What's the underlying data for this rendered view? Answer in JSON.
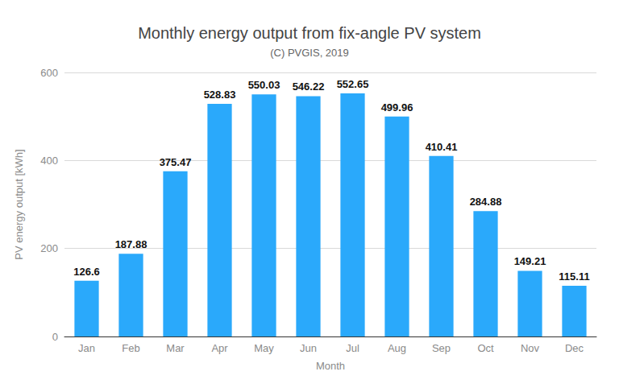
{
  "chart_data": {
    "type": "bar",
    "title": "Monthly energy output from fix-angle PV system",
    "subtitle": "(C) PVGIS, 2019",
    "x_label": "Month",
    "y_label": "PV energy output [kWh]",
    "categories": [
      "Jan",
      "Feb",
      "Mar",
      "Apr",
      "May",
      "Jun",
      "Jul",
      "Aug",
      "Sep",
      "Oct",
      "Nov",
      "Dec"
    ],
    "values": [
      126.6,
      187.88,
      375.47,
      528.83,
      550.03,
      546.22,
      552.65,
      499.96,
      410.41,
      284.88,
      149.21,
      115.11
    ],
    "color": "#2aa9fb",
    "ylim": [
      0,
      600
    ],
    "yticks": [
      0,
      200,
      400,
      600
    ],
    "grid": true,
    "data_labels": true
  }
}
